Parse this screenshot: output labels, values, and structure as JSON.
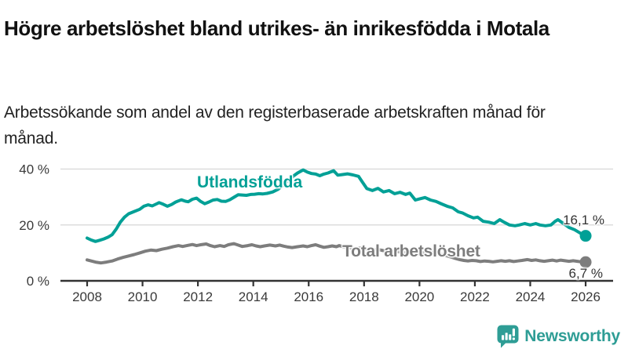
{
  "header": {
    "title": "Högre arbetslöshet bland utrikes- än inrikesfödda i Motala",
    "subtitle": "Arbetssökande som andel av den registerbaserade arbetskraften månad för månad."
  },
  "branding": {
    "name": "Newsworthy",
    "icon": "newsworthy-speech-bubble-barchart-icon",
    "color": "#2e9d95"
  },
  "chart_data": {
    "type": "line",
    "title": "Högre arbetslöshet bland utrikes- än inrikesfödda i Motala",
    "subtitle": "Arbetssökande som andel av den registerbaserade arbetskraften månad för månad.",
    "xlabel": "",
    "ylabel": "",
    "grid": "horizontal",
    "legend_position": "inline-labels",
    "xlim": [
      2008,
      2026
    ],
    "ylim": [
      0,
      42
    ],
    "x_ticks": [
      "2008",
      "2010",
      "2012",
      "2014",
      "2016",
      "2018",
      "2020",
      "2022",
      "2024",
      "2026"
    ],
    "x_tick_values": [
      2008,
      2010,
      2012,
      2014,
      2016,
      2018,
      2020,
      2022,
      2024,
      2026
    ],
    "y_ticks": [
      {
        "value": 0,
        "label": "0 %"
      },
      {
        "value": 20,
        "label": "20 %"
      },
      {
        "value": 40,
        "label": "40 %"
      }
    ],
    "colors": {
      "grid": "#dcdcdc",
      "axis": "#333333",
      "tick_text": "#3a3a3a"
    },
    "series": [
      {
        "name": "Utlandsfödda",
        "color": "#01a096",
        "end_value": 16.1,
        "end_label": "16,1 %",
        "points": [
          [
            2008.0,
            15.3
          ],
          [
            2008.15,
            14.6
          ],
          [
            2008.3,
            14.1
          ],
          [
            2008.45,
            14.5
          ],
          [
            2008.6,
            15.0
          ],
          [
            2008.75,
            15.6
          ],
          [
            2008.9,
            16.5
          ],
          [
            2009.05,
            18.5
          ],
          [
            2009.2,
            21.0
          ],
          [
            2009.35,
            22.8
          ],
          [
            2009.5,
            24.0
          ],
          [
            2009.7,
            24.8
          ],
          [
            2009.9,
            25.6
          ],
          [
            2010.05,
            26.7
          ],
          [
            2010.2,
            27.2
          ],
          [
            2010.35,
            26.8
          ],
          [
            2010.5,
            27.5
          ],
          [
            2010.6,
            28.0
          ],
          [
            2010.75,
            27.4
          ],
          [
            2010.9,
            26.7
          ],
          [
            2011.05,
            27.3
          ],
          [
            2011.2,
            28.2
          ],
          [
            2011.4,
            29.0
          ],
          [
            2011.55,
            28.5
          ],
          [
            2011.65,
            28.3
          ],
          [
            2011.8,
            29.2
          ],
          [
            2011.95,
            29.6
          ],
          [
            2012.1,
            28.4
          ],
          [
            2012.25,
            27.6
          ],
          [
            2012.4,
            28.2
          ],
          [
            2012.55,
            28.9
          ],
          [
            2012.7,
            29.1
          ],
          [
            2012.85,
            28.5
          ],
          [
            2013.0,
            28.4
          ],
          [
            2013.15,
            29.0
          ],
          [
            2013.3,
            29.9
          ],
          [
            2013.45,
            30.8
          ],
          [
            2013.6,
            30.7
          ],
          [
            2013.75,
            30.6
          ],
          [
            2013.9,
            30.9
          ],
          [
            2014.05,
            31.0
          ],
          [
            2014.2,
            31.2
          ],
          [
            2014.35,
            31.1
          ],
          [
            2014.5,
            31.3
          ],
          [
            2014.7,
            31.8
          ],
          [
            2014.9,
            32.8
          ],
          [
            2015.1,
            34.5
          ],
          [
            2015.3,
            36.3
          ],
          [
            2015.45,
            37.5
          ],
          [
            2015.6,
            38.6
          ],
          [
            2015.8,
            39.7
          ],
          [
            2015.95,
            38.9
          ],
          [
            2016.1,
            38.4
          ],
          [
            2016.25,
            38.2
          ],
          [
            2016.4,
            37.6
          ],
          [
            2016.55,
            38.2
          ],
          [
            2016.7,
            38.6
          ],
          [
            2016.9,
            39.4
          ],
          [
            2017.05,
            37.8
          ],
          [
            2017.2,
            38.0
          ],
          [
            2017.4,
            38.3
          ],
          [
            2017.6,
            37.9
          ],
          [
            2017.8,
            37.4
          ],
          [
            2017.95,
            35.2
          ],
          [
            2018.1,
            33.0
          ],
          [
            2018.3,
            32.3
          ],
          [
            2018.5,
            33.1
          ],
          [
            2018.7,
            31.8
          ],
          [
            2018.9,
            32.3
          ],
          [
            2019.1,
            31.2
          ],
          [
            2019.3,
            31.7
          ],
          [
            2019.5,
            30.9
          ],
          [
            2019.65,
            31.4
          ],
          [
            2019.85,
            28.9
          ],
          [
            2020.0,
            29.3
          ],
          [
            2020.2,
            29.8
          ],
          [
            2020.4,
            28.9
          ],
          [
            2020.6,
            28.4
          ],
          [
            2020.8,
            27.5
          ],
          [
            2021.0,
            26.7
          ],
          [
            2021.2,
            26.1
          ],
          [
            2021.4,
            24.7
          ],
          [
            2021.55,
            24.3
          ],
          [
            2021.75,
            23.3
          ],
          [
            2021.95,
            22.5
          ],
          [
            2022.1,
            22.8
          ],
          [
            2022.3,
            21.3
          ],
          [
            2022.5,
            21.0
          ],
          [
            2022.7,
            20.5
          ],
          [
            2022.9,
            21.9
          ],
          [
            2023.05,
            21.0
          ],
          [
            2023.25,
            20.0
          ],
          [
            2023.45,
            19.7
          ],
          [
            2023.6,
            20.0
          ],
          [
            2023.8,
            20.5
          ],
          [
            2024.0,
            20.0
          ],
          [
            2024.2,
            20.5
          ],
          [
            2024.35,
            20.0
          ],
          [
            2024.55,
            19.7
          ],
          [
            2024.75,
            20.0
          ],
          [
            2024.9,
            21.3
          ],
          [
            2025.0,
            21.9
          ],
          [
            2025.2,
            20.5
          ],
          [
            2025.4,
            19.1
          ],
          [
            2025.6,
            18.3
          ],
          [
            2025.8,
            17.1
          ],
          [
            2026.0,
            16.1
          ]
        ]
      },
      {
        "name": "Total arbetslöshet",
        "color": "#7d7d7d",
        "end_value": 6.7,
        "end_label": "6,7 %",
        "points": [
          [
            2008.0,
            7.5
          ],
          [
            2008.15,
            7.1
          ],
          [
            2008.3,
            6.7
          ],
          [
            2008.5,
            6.4
          ],
          [
            2008.7,
            6.7
          ],
          [
            2008.9,
            7.1
          ],
          [
            2009.1,
            7.8
          ],
          [
            2009.3,
            8.4
          ],
          [
            2009.5,
            8.9
          ],
          [
            2009.7,
            9.4
          ],
          [
            2009.9,
            10.0
          ],
          [
            2010.1,
            10.6
          ],
          [
            2010.3,
            11.0
          ],
          [
            2010.5,
            10.8
          ],
          [
            2010.7,
            11.3
          ],
          [
            2010.9,
            11.7
          ],
          [
            2011.1,
            12.2
          ],
          [
            2011.3,
            12.6
          ],
          [
            2011.45,
            12.3
          ],
          [
            2011.6,
            12.6
          ],
          [
            2011.8,
            13.0
          ],
          [
            2011.95,
            12.6
          ],
          [
            2012.1,
            12.9
          ],
          [
            2012.3,
            13.2
          ],
          [
            2012.45,
            12.6
          ],
          [
            2012.6,
            12.2
          ],
          [
            2012.8,
            12.6
          ],
          [
            2012.95,
            12.3
          ],
          [
            2013.1,
            12.9
          ],
          [
            2013.3,
            13.3
          ],
          [
            2013.45,
            12.8
          ],
          [
            2013.6,
            12.3
          ],
          [
            2013.8,
            12.6
          ],
          [
            2013.95,
            12.9
          ],
          [
            2014.1,
            12.5
          ],
          [
            2014.25,
            12.2
          ],
          [
            2014.4,
            12.5
          ],
          [
            2014.6,
            12.8
          ],
          [
            2014.8,
            12.5
          ],
          [
            2014.95,
            12.8
          ],
          [
            2015.1,
            12.4
          ],
          [
            2015.25,
            12.1
          ],
          [
            2015.4,
            11.9
          ],
          [
            2015.6,
            12.2
          ],
          [
            2015.8,
            12.5
          ],
          [
            2015.95,
            12.2
          ],
          [
            2016.1,
            12.6
          ],
          [
            2016.25,
            12.9
          ],
          [
            2016.4,
            12.4
          ],
          [
            2016.55,
            12.0
          ],
          [
            2016.7,
            12.2
          ],
          [
            2016.85,
            12.5
          ],
          [
            2017.0,
            12.2
          ],
          [
            2017.1,
            12.6
          ],
          [
            2017.3,
            12.1
          ],
          [
            2017.5,
            11.8
          ],
          [
            2017.7,
            11.5
          ],
          [
            2017.9,
            11.8
          ],
          [
            2018.1,
            11.3
          ],
          [
            2018.3,
            11.0
          ],
          [
            2018.5,
            11.2
          ],
          [
            2018.7,
            10.8
          ],
          [
            2018.9,
            10.5
          ],
          [
            2019.1,
            10.7
          ],
          [
            2019.3,
            10.3
          ],
          [
            2019.5,
            10.0
          ],
          [
            2019.7,
            9.7
          ],
          [
            2019.9,
            9.5
          ],
          [
            2020.1,
            10.0
          ],
          [
            2020.3,
            10.4
          ],
          [
            2020.5,
            10.1
          ],
          [
            2020.7,
            9.7
          ],
          [
            2020.9,
            9.2
          ],
          [
            2021.1,
            8.6
          ],
          [
            2021.3,
            8.0
          ],
          [
            2021.45,
            7.6
          ],
          [
            2021.6,
            7.3
          ],
          [
            2021.75,
            7.1
          ],
          [
            2021.9,
            7.3
          ],
          [
            2022.05,
            7.2
          ],
          [
            2022.2,
            6.9
          ],
          [
            2022.35,
            7.1
          ],
          [
            2022.5,
            7.0
          ],
          [
            2022.65,
            6.8
          ],
          [
            2022.8,
            7.0
          ],
          [
            2022.95,
            7.2
          ],
          [
            2023.1,
            7.0
          ],
          [
            2023.25,
            7.2
          ],
          [
            2023.4,
            6.9
          ],
          [
            2023.55,
            7.1
          ],
          [
            2023.7,
            7.3
          ],
          [
            2023.9,
            7.6
          ],
          [
            2024.05,
            7.3
          ],
          [
            2024.2,
            7.5
          ],
          [
            2024.35,
            7.2
          ],
          [
            2024.5,
            7.0
          ],
          [
            2024.65,
            7.2
          ],
          [
            2024.8,
            7.4
          ],
          [
            2024.95,
            7.1
          ],
          [
            2025.1,
            7.4
          ],
          [
            2025.25,
            7.2
          ],
          [
            2025.4,
            7.0
          ],
          [
            2025.55,
            7.2
          ],
          [
            2025.7,
            7.0
          ],
          [
            2025.85,
            6.8
          ],
          [
            2026.0,
            6.7
          ]
        ]
      }
    ]
  }
}
